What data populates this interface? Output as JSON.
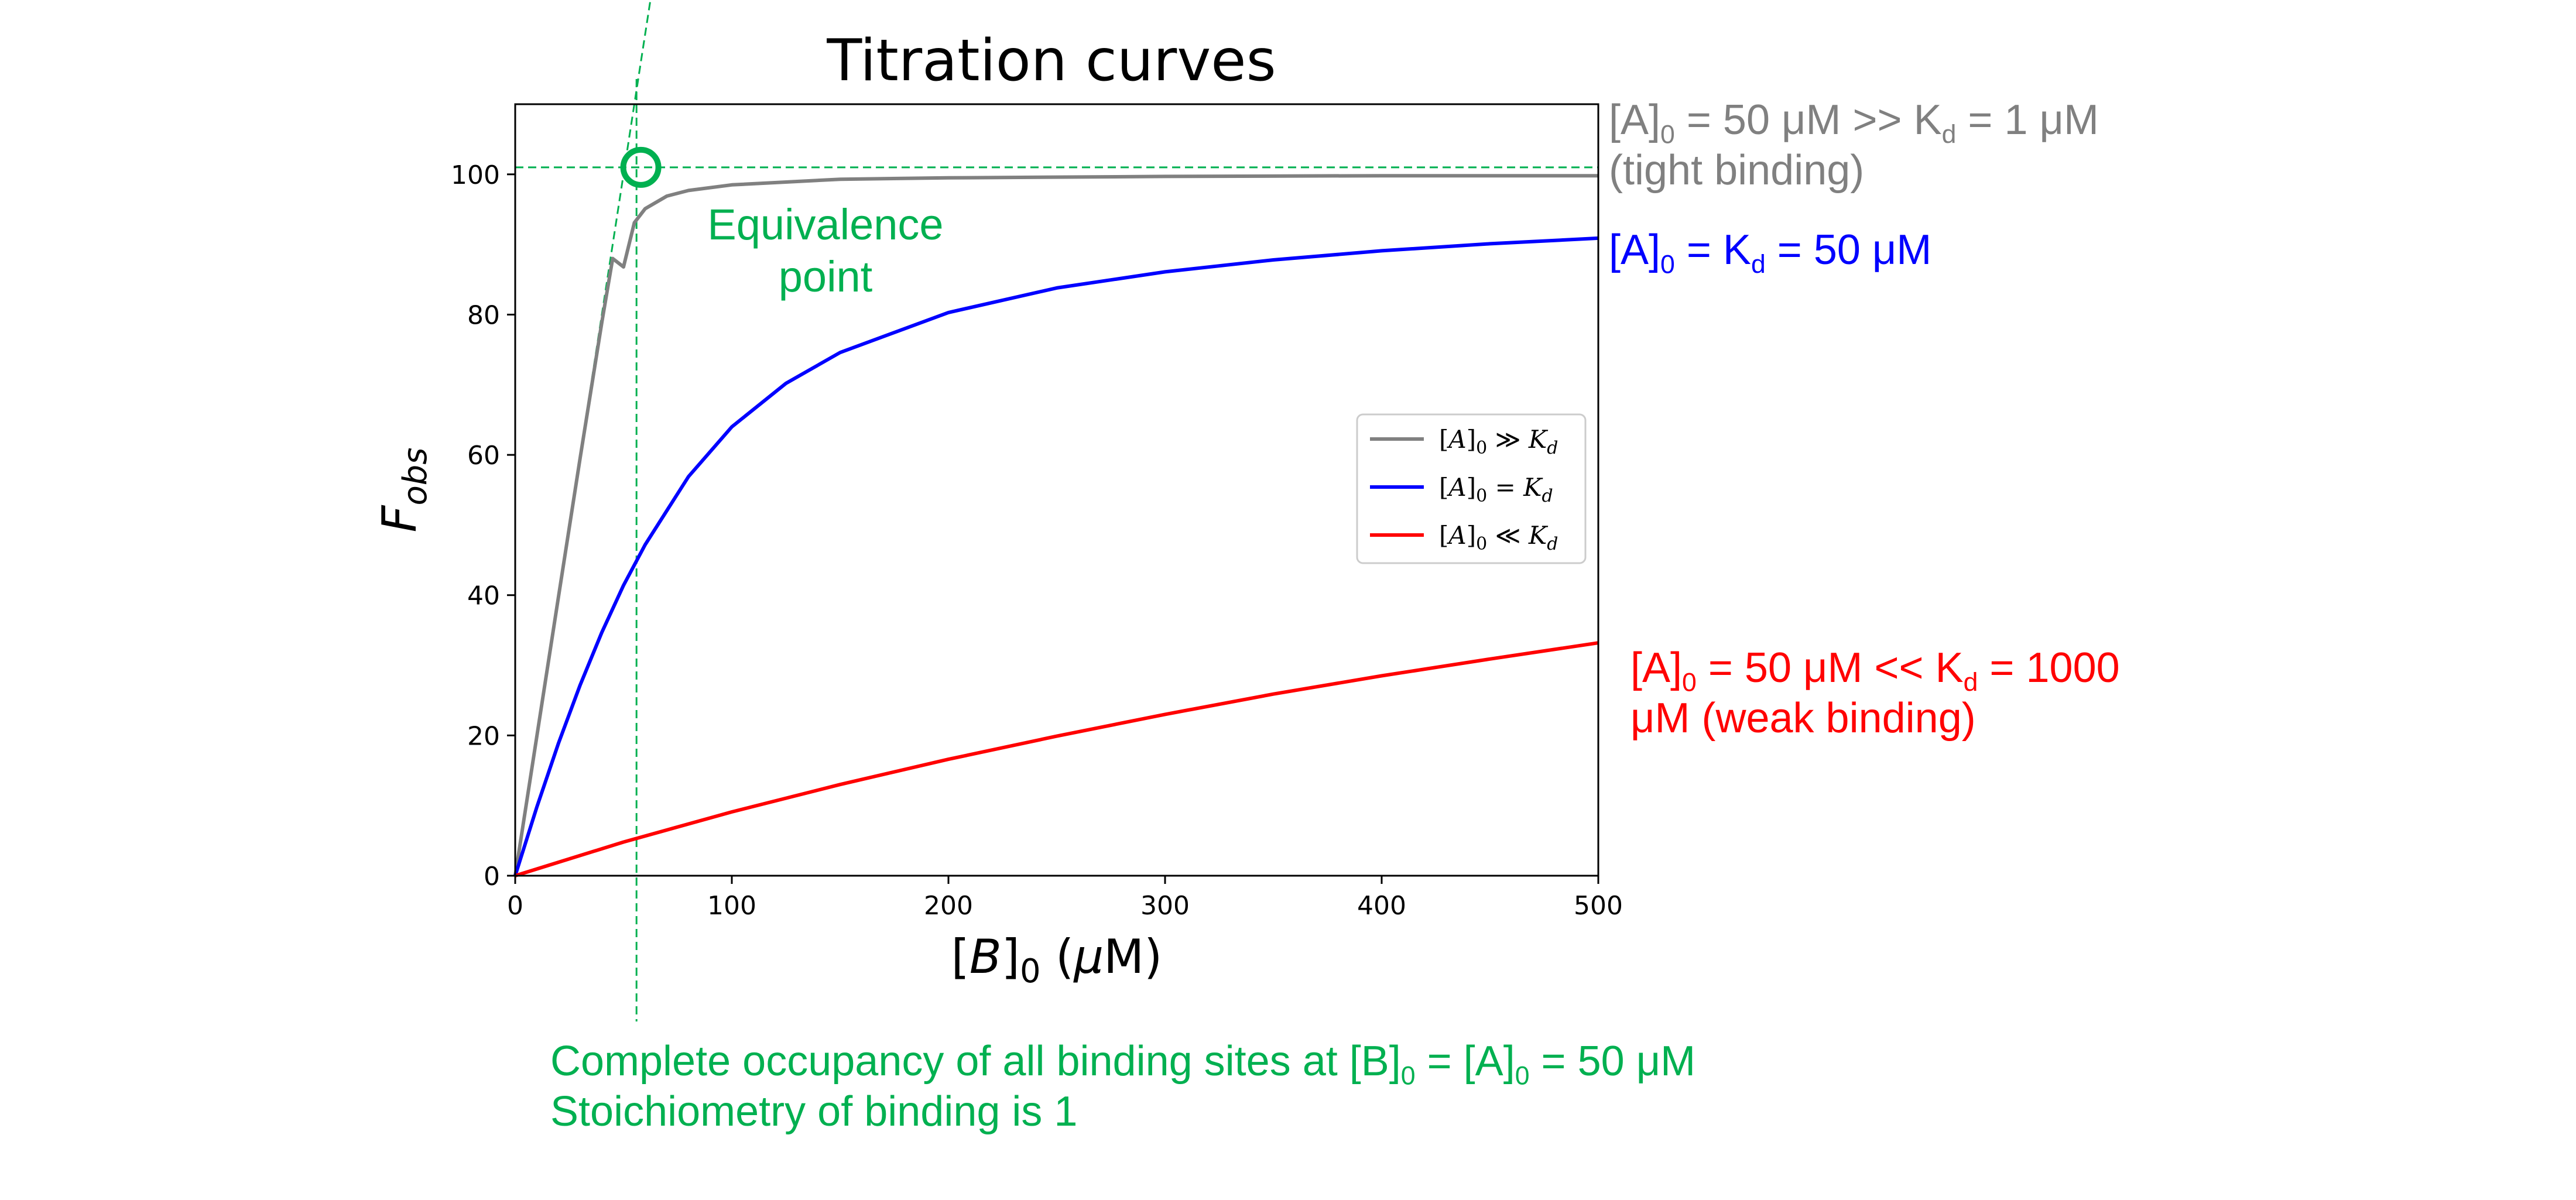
{
  "chart_data": {
    "type": "line",
    "title": "Titration curves",
    "xlabel": "[B]₀ (μM)",
    "ylabel": "F_obs",
    "xlim": [
      0,
      500
    ],
    "ylim": [
      0,
      110
    ],
    "x_ticks": [
      0,
      100,
      200,
      300,
      400,
      500
    ],
    "y_ticks": [
      0,
      20,
      40,
      60,
      80,
      100
    ],
    "grid": false,
    "legend_position": "center-right",
    "series": [
      {
        "name": "[A]₀ ≫ K_d",
        "color": "#808080",
        "A0": 50,
        "Kd": 1,
        "x": [
          0,
          10,
          20,
          30,
          40,
          45,
          50,
          55,
          60,
          70,
          80,
          100,
          150,
          200,
          300,
          400,
          500
        ],
        "y": [
          0,
          19.9,
          39.8,
          59.6,
          78.9,
          88.0,
          86.8,
          93.1,
          95.1,
          96.9,
          97.7,
          98.5,
          99.3,
          99.5,
          99.7,
          99.8,
          99.8
        ]
      },
      {
        "name": "[A]₀ = K_d",
        "color": "#0000ff",
        "A0": 50,
        "Kd": 50,
        "x": [
          0,
          10,
          20,
          30,
          40,
          50,
          60,
          80,
          100,
          125,
          150,
          200,
          250,
          300,
          350,
          400,
          450,
          500
        ],
        "y": [
          0,
          9.8,
          18.9,
          27.2,
          34.7,
          41.4,
          47.2,
          56.9,
          64.0,
          70.2,
          74.6,
          80.3,
          83.8,
          86.1,
          87.8,
          89.1,
          90.1,
          90.9
        ]
      },
      {
        "name": "[A]₀ ≪ K_d",
        "color": "#ff0000",
        "A0": 50,
        "Kd": 1000,
        "x": [
          0,
          50,
          100,
          150,
          200,
          250,
          300,
          350,
          400,
          450,
          500
        ],
        "y": [
          0,
          4.8,
          9.1,
          13.0,
          16.6,
          19.9,
          23.0,
          25.9,
          28.5,
          30.9,
          33.2
        ]
      }
    ],
    "annotations": {
      "equivalence_point": {
        "x": 58,
        "y": 101,
        "label_line1": "Equivalence",
        "label_line2": "point"
      },
      "guide_horizontal_y": 101,
      "guide_vertical_x": 56,
      "tight_label": {
        "prefix": "[A]",
        "sub": "0",
        "mid": " = 50 μM >> K",
        "sub2": "d",
        "suffix": " = 1 μM",
        "line2": "(tight binding)"
      },
      "equal_label": {
        "prefix": "[A]",
        "sub": "0",
        "mid": " = K",
        "sub2": "d",
        "suffix": " = 50 μM"
      },
      "weak_label": {
        "prefix": "[A]",
        "sub": "0",
        "mid": " = 50 μM << K",
        "sub2": "d",
        "suffix": " = 1000",
        "line2": "μM (weak binding)"
      },
      "bottom_line1": {
        "prefix": "Complete occupancy of all binding sites at [B]",
        "sub": "0",
        "mid": " = [A]",
        "sub2": "0",
        "suffix": " = 50 μM"
      },
      "bottom_line2": "Stoichiometry of binding is 1"
    },
    "colors": {
      "green": "#00b050",
      "gray": "#808080",
      "blue": "#0000ff",
      "red": "#ff0000"
    }
  }
}
